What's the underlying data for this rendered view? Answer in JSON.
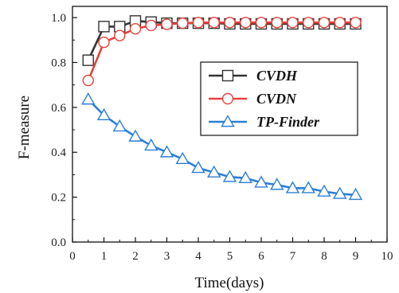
{
  "chart_data": {
    "type": "line",
    "xlabel": "Time(days)",
    "ylabel": "F-measure",
    "xlim": [
      0,
      10
    ],
    "ylim": [
      0.0,
      1.05
    ],
    "x_ticks": [
      "0",
      "1",
      "2",
      "3",
      "4",
      "5",
      "6",
      "7",
      "8",
      "9",
      "10"
    ],
    "y_ticks": [
      "0.0",
      "0.2",
      "0.4",
      "0.6",
      "0.8",
      "1.0"
    ],
    "grid": false,
    "legend": "top-right",
    "x": [
      0.5,
      1,
      1.5,
      2,
      2.5,
      3,
      3.5,
      4,
      4.5,
      5,
      5.5,
      6,
      6.5,
      7,
      7.5,
      8,
      8.5,
      9
    ],
    "series": [
      {
        "name": "CVDH",
        "color": "#333333",
        "marker": "square",
        "values": [
          0.81,
          0.96,
          0.96,
          0.985,
          0.98,
          0.975,
          0.975,
          0.975,
          0.975,
          0.972,
          0.972,
          0.972,
          0.972,
          0.972,
          0.972,
          0.972,
          0.972,
          0.972
        ]
      },
      {
        "name": "CVDN",
        "color": "#e8413c",
        "marker": "circle",
        "values": [
          0.72,
          0.89,
          0.92,
          0.95,
          0.965,
          0.97,
          0.975,
          0.978,
          0.978,
          0.978,
          0.978,
          0.978,
          0.978,
          0.978,
          0.978,
          0.978,
          0.978,
          0.978
        ]
      },
      {
        "name": "TP-Finder",
        "color": "#2c7fd6",
        "marker": "triangle",
        "values": [
          0.635,
          0.565,
          0.515,
          0.47,
          0.43,
          0.4,
          0.37,
          0.33,
          0.31,
          0.29,
          0.285,
          0.265,
          0.255,
          0.24,
          0.24,
          0.225,
          0.215,
          0.21
        ]
      }
    ]
  }
}
